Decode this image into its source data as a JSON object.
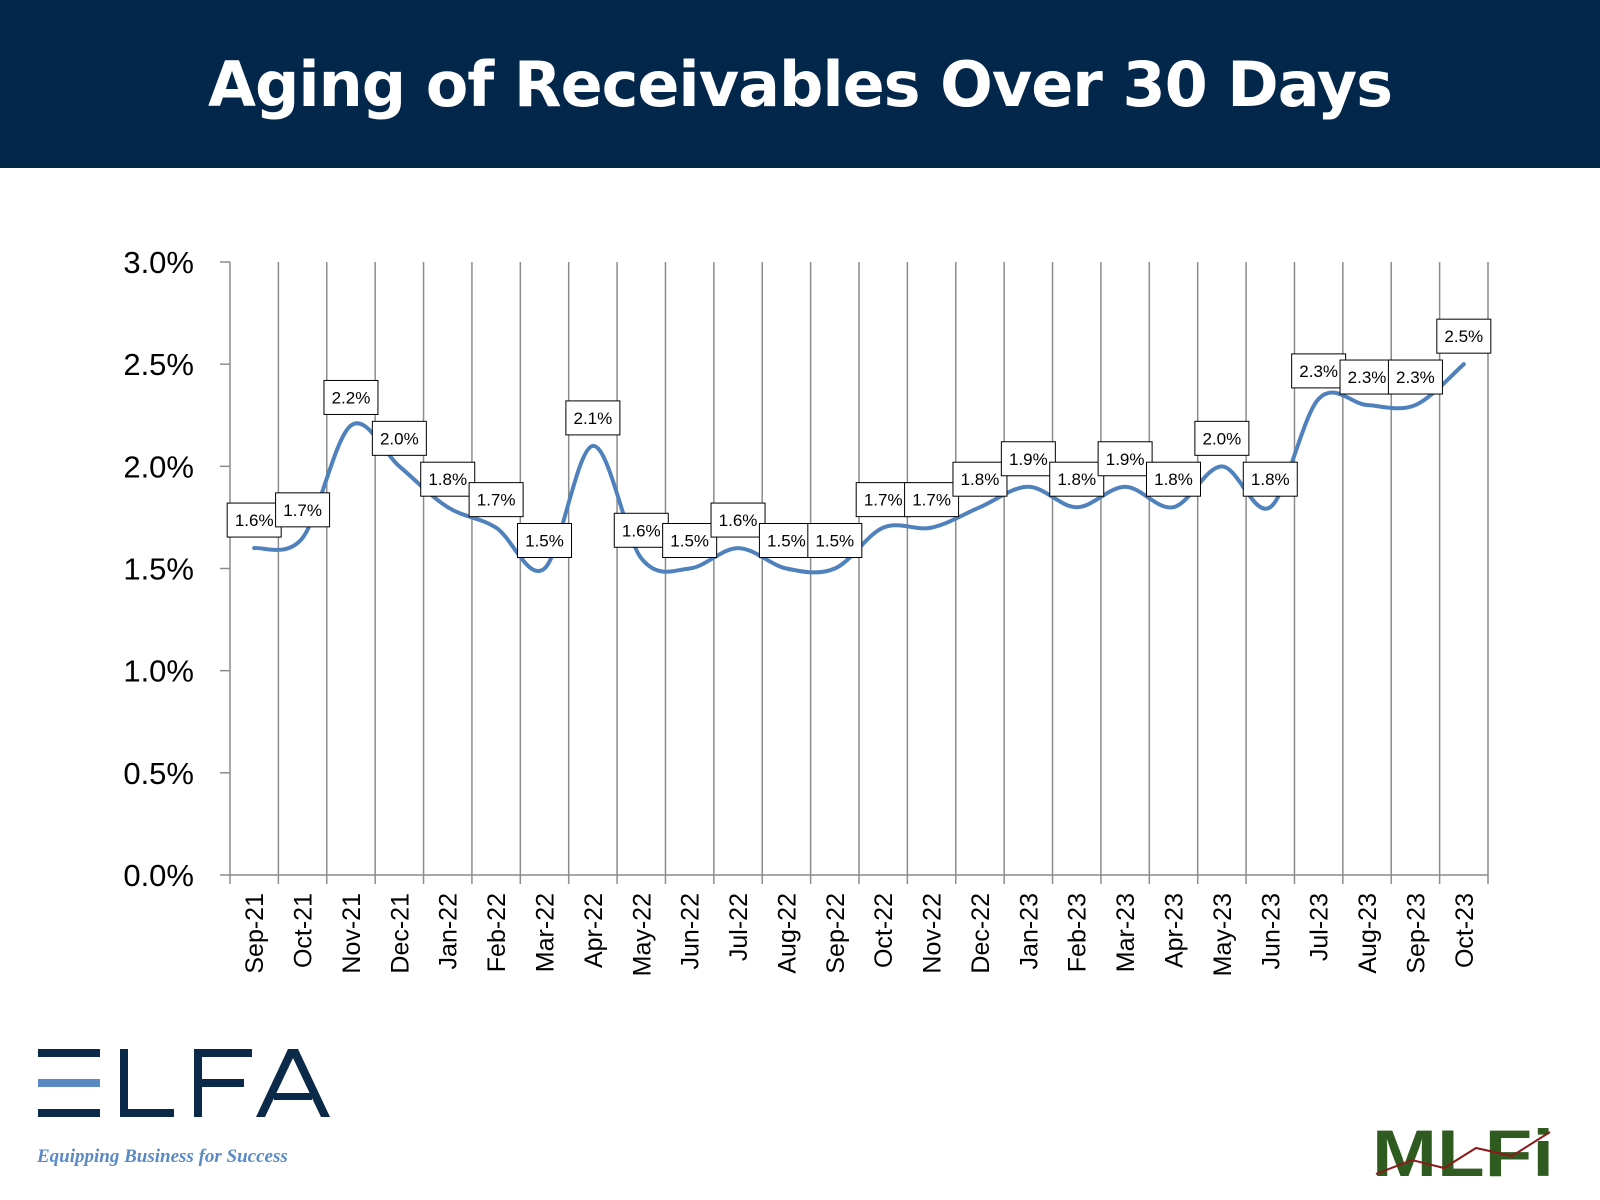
{
  "header": {
    "title": "Aging of Receivables Over 30 Days"
  },
  "chart_data": {
    "type": "line",
    "title": "Aging of Receivables Over 30 Days",
    "xlabel": "",
    "ylabel": "",
    "ylim": [
      0,
      3.0
    ],
    "ytick_step": 0.5,
    "ytick_labels": [
      "0.0%",
      "0.5%",
      "1.0%",
      "1.5%",
      "2.0%",
      "2.5%",
      "3.0%"
    ],
    "categories": [
      "Sep-21",
      "Oct-21",
      "Nov-21",
      "Dec-21",
      "Jan-22",
      "Feb-22",
      "Mar-22",
      "Apr-22",
      "May-22",
      "Jun-22",
      "Jul-22",
      "Aug-22",
      "Sep-22",
      "Oct-22",
      "Nov-22",
      "Dec-22",
      "Jan-23",
      "Feb-23",
      "Mar-23",
      "Apr-23",
      "May-23",
      "Jun-23",
      "Jul-23",
      "Aug-23",
      "Sep-23",
      "Oct-23"
    ],
    "series": [
      {
        "values": [
          1.6,
          1.65,
          2.2,
          2.0,
          1.8,
          1.7,
          1.5,
          2.1,
          1.55,
          1.5,
          1.6,
          1.5,
          1.5,
          1.7,
          1.7,
          1.8,
          1.9,
          1.8,
          1.9,
          1.8,
          2.0,
          1.8,
          2.33,
          2.3,
          2.3,
          2.5
        ],
        "data_labels": [
          "1.6%",
          "1.7%",
          "2.2%",
          "2.0%",
          "1.8%",
          "1.7%",
          "1.5%",
          "2.1%",
          "1.6%",
          "1.5%",
          "1.6%",
          "1.5%",
          "1.5%",
          "1.7%",
          "1.7%",
          "1.8%",
          "1.9%",
          "1.8%",
          "1.9%",
          "1.8%",
          "2.0%",
          "1.8%",
          "2.3%",
          "2.3%",
          "2.3%",
          "2.5%"
        ],
        "color": "#4f81bd"
      }
    ],
    "grid": "vertical",
    "legend": "none"
  },
  "logos": {
    "elfa_wordmark": "ELFA",
    "elfa_tagline": "Equipping Business for Success",
    "mlfi_wordmark": "MLFI"
  },
  "colors": {
    "header_bg": "#03264b",
    "header_text": "#ffffff",
    "line": "#4f81bd",
    "grid": "#8c8c8c",
    "elfa_dark": "#0b2a4a",
    "elfa_light": "#5a8ac6",
    "mlfi_green": "#2f5a20"
  }
}
